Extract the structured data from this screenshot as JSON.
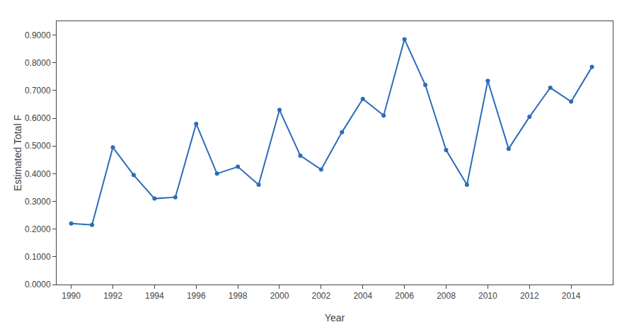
{
  "chart_data": {
    "type": "line",
    "x": [
      1990,
      1991,
      1992,
      1993,
      1994,
      1995,
      1996,
      1997,
      1998,
      1999,
      2000,
      2001,
      2002,
      2003,
      2004,
      2005,
      2006,
      2007,
      2008,
      2009,
      2010,
      2011,
      2012,
      2013,
      2014,
      2015
    ],
    "values": [
      0.22,
      0.215,
      0.495,
      0.395,
      0.31,
      0.315,
      0.58,
      0.4,
      0.425,
      0.36,
      0.63,
      0.465,
      0.415,
      0.55,
      0.67,
      0.61,
      0.885,
      0.72,
      0.485,
      0.36,
      0.735,
      0.49,
      0.605,
      0.71,
      0.66,
      0.785
    ],
    "xlabel": "Year",
    "ylabel": "Estimated Total F",
    "xlim": [
      1989.3,
      2016.0
    ],
    "xticks": [
      1990,
      1992,
      1994,
      1996,
      1998,
      2000,
      2002,
      2004,
      2006,
      2008,
      2010,
      2012,
      2014
    ],
    "ylim": [
      0.0,
      0.95
    ],
    "yticks": [
      {
        "value": 0.0,
        "label": "0.0000"
      },
      {
        "value": 0.1,
        "label": "0.1000"
      },
      {
        "value": 0.2,
        "label": "0.2000"
      },
      {
        "value": 0.3,
        "label": "0.3000"
      },
      {
        "value": 0.4,
        "label": "0.4000"
      },
      {
        "value": 0.5,
        "label": "0.5000"
      },
      {
        "value": 0.6,
        "label": "0.6000"
      },
      {
        "value": 0.7,
        "label": "0.7000"
      },
      {
        "value": 0.8,
        "label": "0.8000"
      },
      {
        "value": 0.9,
        "label": "0.9000"
      }
    ],
    "color": "#2b6cb8",
    "marker": "circle",
    "grid": false
  }
}
